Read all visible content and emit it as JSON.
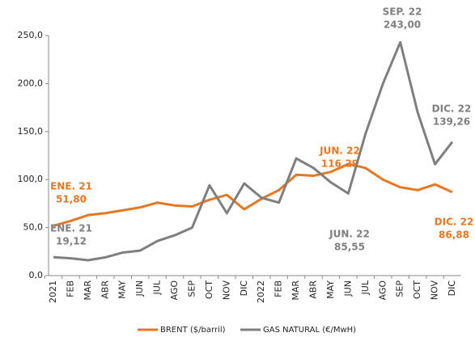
{
  "chart_data": {
    "type": "line",
    "categories": [
      "2021",
      "FEB",
      "MAR",
      "ABR",
      "MAY",
      "JUN",
      "JUL",
      "AGO",
      "SEP",
      "OCT",
      "NOV",
      "DIC",
      "2022",
      "FEB",
      "MAR",
      "ABR",
      "MAY",
      "JUN",
      "JUL",
      "AGO",
      "SEP",
      "OCT",
      "NOV",
      "DIC"
    ],
    "ylim": [
      0,
      250
    ],
    "yticks": [
      {
        "value": 0,
        "label": "0,0"
      },
      {
        "value": 50,
        "label": "50,0"
      },
      {
        "value": 100,
        "label": "100,0"
      },
      {
        "value": 150,
        "label": "150,0"
      },
      {
        "value": 200,
        "label": "200,0"
      },
      {
        "value": 250,
        "label": "250,0"
      }
    ],
    "legend": "bottom",
    "series": [
      {
        "name": "BRENT ($/barril)",
        "color": "#e87722",
        "values": [
          51.8,
          57,
          63,
          65,
          68,
          71,
          76,
          73,
          72,
          79,
          84,
          69,
          80,
          89,
          105,
          104,
          108,
          116.29,
          112,
          100,
          92,
          89,
          95,
          86.88
        ],
        "value_labels": [
          "51,80",
          null,
          null,
          null,
          null,
          null,
          null,
          null,
          null,
          null,
          null,
          null,
          null,
          null,
          null,
          null,
          null,
          "116,29",
          null,
          null,
          null,
          null,
          null,
          "86,88"
        ],
        "point_labels": [
          "ENE. 21",
          null,
          null,
          null,
          null,
          null,
          null,
          null,
          null,
          null,
          null,
          null,
          null,
          null,
          null,
          null,
          null,
          "JUN. 22",
          null,
          null,
          null,
          null,
          null,
          "DIC. 22"
        ]
      },
      {
        "name": "GAS NATURAL (€/MwH)",
        "color": "#7f7f7f",
        "values": [
          19.12,
          18,
          16,
          19,
          24,
          26,
          36,
          42,
          50,
          94,
          65,
          96,
          81,
          76,
          122,
          112,
          97,
          85.55,
          148,
          200,
          243.0,
          170,
          116,
          139.26
        ],
        "value_labels": [
          "19,12",
          null,
          null,
          null,
          null,
          null,
          null,
          null,
          null,
          null,
          null,
          null,
          null,
          null,
          null,
          null,
          null,
          "85,55",
          null,
          null,
          "243,00",
          null,
          null,
          "139,26"
        ],
        "point_labels": [
          "ENE. 21",
          null,
          null,
          null,
          null,
          null,
          null,
          null,
          null,
          null,
          null,
          null,
          null,
          null,
          null,
          null,
          null,
          "JUN. 22",
          null,
          null,
          "SEP. 22",
          null,
          null,
          "DIC. 22"
        ]
      }
    ]
  }
}
